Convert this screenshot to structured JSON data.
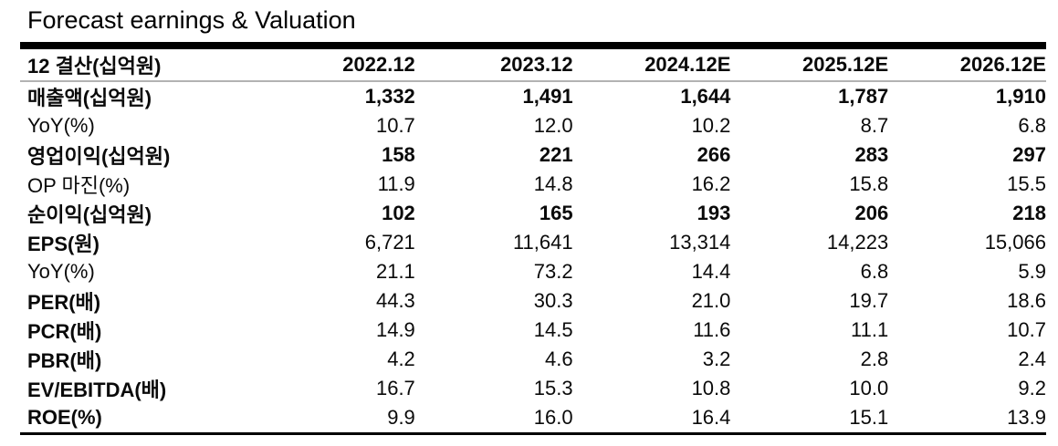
{
  "title": "Forecast earnings & Valuation",
  "table": {
    "header": {
      "label": "12 결산(십억원)",
      "columns": [
        "2022.12",
        "2023.12",
        "2024.12E",
        "2025.12E",
        "2026.12E"
      ]
    },
    "rows": [
      {
        "label": "매출액(십억원)",
        "label_bold": true,
        "values_bold": true,
        "values": [
          "1,332",
          "1,491",
          "1,644",
          "1,787",
          "1,910"
        ]
      },
      {
        "label": "YoY(%)",
        "label_bold": false,
        "values_bold": false,
        "values": [
          "10.7",
          "12.0",
          "10.2",
          "8.7",
          "6.8"
        ]
      },
      {
        "label": "영업이익(십억원)",
        "label_bold": true,
        "values_bold": true,
        "values": [
          "158",
          "221",
          "266",
          "283",
          "297"
        ]
      },
      {
        "label": "OP 마진(%)",
        "label_bold": false,
        "values_bold": false,
        "values": [
          "11.9",
          "14.8",
          "16.2",
          "15.8",
          "15.5"
        ]
      },
      {
        "label": "순이익(십억원)",
        "label_bold": true,
        "values_bold": true,
        "values": [
          "102",
          "165",
          "193",
          "206",
          "218"
        ]
      },
      {
        "label": "EPS(원)",
        "label_bold": true,
        "values_bold": false,
        "values": [
          "6,721",
          "11,641",
          "13,314",
          "14,223",
          "15,066"
        ]
      },
      {
        "label": "YoY(%)",
        "label_bold": false,
        "values_bold": false,
        "values": [
          "21.1",
          "73.2",
          "14.4",
          "6.8",
          "5.9"
        ]
      },
      {
        "label": "PER(배)",
        "label_bold": true,
        "values_bold": false,
        "values": [
          "44.3",
          "30.3",
          "21.0",
          "19.7",
          "18.6"
        ]
      },
      {
        "label": "PCR(배)",
        "label_bold": true,
        "values_bold": false,
        "values": [
          "14.9",
          "14.5",
          "11.6",
          "11.1",
          "10.7"
        ]
      },
      {
        "label": "PBR(배)",
        "label_bold": true,
        "values_bold": false,
        "values": [
          "4.2",
          "4.6",
          "3.2",
          "2.8",
          "2.4"
        ]
      },
      {
        "label": "EV/EBITDA(배)",
        "label_bold": true,
        "values_bold": false,
        "values": [
          "16.7",
          "15.3",
          "10.8",
          "10.0",
          "9.2"
        ]
      },
      {
        "label": "ROE(%)",
        "label_bold": true,
        "values_bold": false,
        "values": [
          "9.9",
          "16.0",
          "16.4",
          "15.1",
          "13.9"
        ]
      }
    ]
  },
  "colors": {
    "text": "#0a0a0a",
    "border_heavy": "#000000",
    "border_light": "#b3b3b3",
    "background": "#ffffff"
  }
}
